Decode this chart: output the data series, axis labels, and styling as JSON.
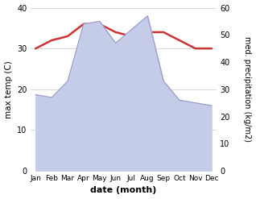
{
  "months": [
    "Jan",
    "Feb",
    "Mar",
    "Apr",
    "May",
    "Jun",
    "Jul",
    "Aug",
    "Sep",
    "Oct",
    "Nov",
    "Dec"
  ],
  "temp": [
    30,
    32,
    33,
    36,
    36,
    34,
    33,
    34,
    34,
    32,
    30,
    30
  ],
  "precip": [
    28,
    27,
    33,
    54,
    55,
    47,
    52,
    57,
    33,
    26,
    25,
    24
  ],
  "temp_color": "#cc3333",
  "precip_color": "#c5cce8",
  "precip_edge_color": "#9999cc",
  "temp_ylim": [
    0,
    40
  ],
  "precip_ylim": [
    0,
    60
  ],
  "temp_yticks": [
    0,
    10,
    20,
    30,
    40
  ],
  "precip_yticks": [
    0,
    10,
    20,
    30,
    40,
    50,
    60
  ],
  "xlabel": "date (month)",
  "ylabel_left": "max temp (C)",
  "ylabel_right": "med. precipitation (kg/m2)",
  "background_color": "#ffffff"
}
